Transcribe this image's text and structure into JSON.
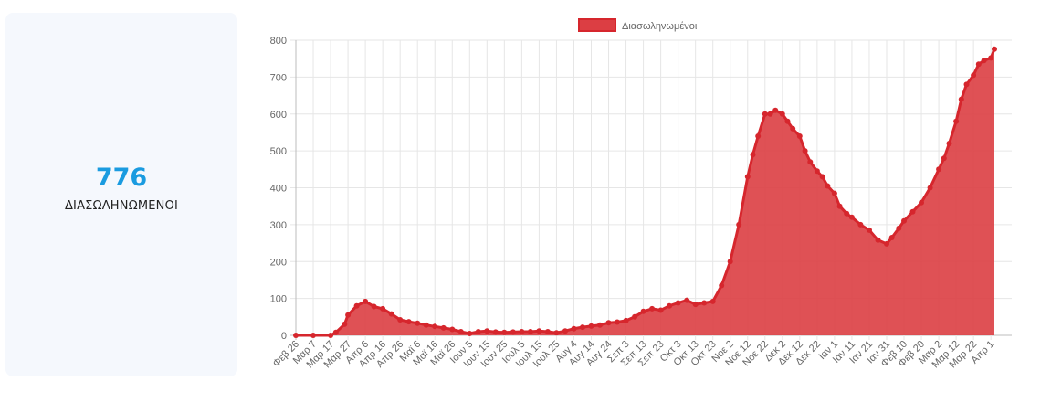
{
  "summary": {
    "value": "776",
    "label": "ΔΙΑΣΩΛΗΝΩΜΕΝΟΙ"
  },
  "colors": {
    "accent": "#1a9be0",
    "series_fill": "#dc3e43",
    "series_line": "#d6262d",
    "card_background": "#f5f8fd"
  },
  "chart_data": {
    "type": "area",
    "legend": {
      "label": "Διασωληνωμένοι",
      "position": "top"
    },
    "grid": true,
    "ylim": [
      0,
      800
    ],
    "yticks": [
      0,
      100,
      200,
      300,
      400,
      500,
      600,
      700,
      800
    ],
    "x_tick_labels": [
      "Φεβ 26",
      "Μαρ 7",
      "Μαρ 17",
      "Μαρ 27",
      "Απρ 6",
      "Απρ 16",
      "Απρ 26",
      "Μαϊ 6",
      "Μαϊ 16",
      "Μαϊ 26",
      "Ιουν 5",
      "Ιουν 15",
      "Ιουν 25",
      "Ιουλ 5",
      "Ιουλ 15",
      "Ιουλ 25",
      "Αυγ 4",
      "Αυγ 14",
      "Αυγ 24",
      "Σεπ 3",
      "Σεπ 13",
      "Σεπ 23",
      "Οκτ 3",
      "Οκτ 13",
      "Οκτ 23",
      "Νοε 2",
      "Νοε 12",
      "Νοε 22",
      "Δεκ 2",
      "Δεκ 12",
      "Δεκ 22",
      "Ιαν 1",
      "Ιαν 11",
      "Ιαν 21",
      "Ιαν 31",
      "Φεβ 10",
      "Φεβ 20",
      "Μαρ 2",
      "Μαρ 12",
      "Μαρ 22",
      "Απρ 1"
    ],
    "series": [
      {
        "name": "Διασωληνωμένοι",
        "x": [
          "Φεβ 26",
          "Μαρ 7",
          "Μαρ 17",
          "Μαρ 20",
          "Μαρ 25",
          "Μαρ 27",
          "Απρ 1",
          "Απρ 6",
          "Απρ 11",
          "Απρ 16",
          "Απρ 21",
          "Απρ 26",
          "Μαϊ 1",
          "Μαϊ 6",
          "Μαϊ 11",
          "Μαϊ 16",
          "Μαϊ 21",
          "Μαϊ 26",
          "Μαϊ 31",
          "Ιουν 5",
          "Ιουν 10",
          "Ιουν 15",
          "Ιουν 20",
          "Ιουν 25",
          "Ιουν 30",
          "Ιουλ 5",
          "Ιουλ 10",
          "Ιουλ 15",
          "Ιουλ 20",
          "Ιουλ 25",
          "Ιουλ 30",
          "Αυγ 4",
          "Αυγ 9",
          "Αυγ 14",
          "Αυγ 19",
          "Αυγ 24",
          "Αυγ 29",
          "Σεπ 3",
          "Σεπ 8",
          "Σεπ 13",
          "Σεπ 18",
          "Σεπ 23",
          "Σεπ 28",
          "Οκτ 3",
          "Οκτ 8",
          "Οκτ 13",
          "Οκτ 18",
          "Οκτ 23",
          "Οκτ 28",
          "Νοε 2",
          "Νοε 7",
          "Νοε 12",
          "Νοε 15",
          "Νοε 18",
          "Νοε 22",
          "Νοε 25",
          "Νοε 28",
          "Δεκ 2",
          "Δεκ 5",
          "Δεκ 8",
          "Δεκ 12",
          "Δεκ 15",
          "Δεκ 18",
          "Δεκ 22",
          "Δεκ 25",
          "Δεκ 28",
          "Ιαν 1",
          "Ιαν 4",
          "Ιαν 8",
          "Ιαν 11",
          "Ιαν 16",
          "Ιαν 21",
          "Ιαν 26",
          "Ιαν 31",
          "Φεβ 3",
          "Φεβ 7",
          "Φεβ 10",
          "Φεβ 15",
          "Φεβ 20",
          "Φεβ 25",
          "Μαρ 2",
          "Μαρ 5",
          "Μαρ 8",
          "Μαρ 12",
          "Μαρ 15",
          "Μαρ 18",
          "Μαρ 22",
          "Μαρ 25",
          "Μαρ 28",
          "Απρ 1",
          "Απρ 3"
        ],
        "values": [
          0,
          0,
          0,
          8,
          30,
          55,
          80,
          92,
          78,
          72,
          58,
          42,
          37,
          33,
          28,
          24,
          20,
          16,
          10,
          5,
          10,
          12,
          9,
          8,
          9,
          10,
          10,
          12,
          10,
          7,
          12,
          18,
          22,
          25,
          28,
          34,
          36,
          40,
          50,
          65,
          72,
          68,
          80,
          88,
          95,
          84,
          88,
          92,
          135,
          200,
          300,
          430,
          490,
          540,
          600,
          600,
          610,
          600,
          580,
          560,
          540,
          500,
          470,
          445,
          430,
          405,
          385,
          350,
          330,
          320,
          300,
          285,
          258,
          248,
          265,
          290,
          310,
          335,
          360,
          400,
          450,
          480,
          520,
          580,
          640,
          680,
          705,
          735,
          745,
          752,
          776
        ]
      }
    ]
  }
}
